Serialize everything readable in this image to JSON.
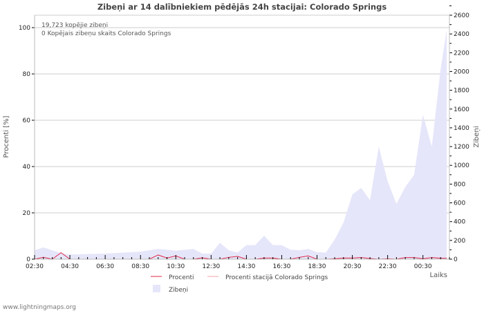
{
  "chart_data": {
    "type": "area",
    "title": "Zibeņi ar 14 dalībniekiem pēdējās 24h stacijai: Colorado Springs",
    "info_lines": [
      "19,723 kopējie zibeņi",
      "0 Kopējais zibeņu skaits Colorado Springs"
    ],
    "xlabel": "Laiks",
    "ylabel_left": "Procenti   [%]",
    "ylabel_right": "Zibeņi",
    "x_unit": "hours since 02:30",
    "xlim": [
      0,
      23.5
    ],
    "x_ticks": [
      "02:30",
      "04:30",
      "06:30",
      "08:30",
      "10:30",
      "12:30",
      "14:30",
      "16:30",
      "18:30",
      "20:30",
      "22:30",
      "00:30"
    ],
    "ylim_left": [
      0,
      100
    ],
    "y_ticks_left": [
      0,
      20,
      40,
      60,
      80,
      100
    ],
    "ylim_right": [
      0,
      2600
    ],
    "y_ticks_right": [
      0,
      200,
      400,
      600,
      800,
      1000,
      1200,
      1400,
      1600,
      1800,
      2000,
      2200,
      2400,
      2600
    ],
    "series": [
      {
        "name": "Zibeņi",
        "axis": "right",
        "color": "#e6e6fa",
        "x": [
          0,
          0.5,
          1,
          1.6,
          2,
          4,
          6,
          7,
          8,
          9,
          9.5,
          10,
          10.5,
          11,
          11.5,
          12,
          12.5,
          13,
          13.5,
          14,
          14.5,
          15,
          15.5,
          16,
          16.5,
          17,
          17.5,
          18,
          18.5,
          19,
          19.5,
          20,
          20.5,
          21,
          21.5,
          22,
          22.5,
          23,
          23.35
        ],
        "values": [
          95,
          125,
          95,
          60,
          50,
          60,
          80,
          110,
          90,
          110,
          60,
          60,
          175,
          95,
          70,
          150,
          150,
          250,
          150,
          150,
          100,
          95,
          110,
          75,
          70,
          210,
          390,
          690,
          760,
          630,
          1200,
          830,
          590,
          770,
          900,
          1540,
          1200,
          2025,
          2450
        ]
      },
      {
        "name": "Procenti",
        "axis": "left",
        "color": "#e0294a",
        "x": [
          0,
          0.5,
          1,
          1.5,
          2,
          6.5,
          7,
          7.5,
          8,
          8.5,
          9,
          9.5,
          10,
          10.5,
          11,
          11.5,
          12,
          12.5,
          13,
          13.5,
          14,
          14.5,
          15,
          15.5,
          16,
          16.5,
          17,
          17.5,
          18,
          18.5,
          19,
          19.5,
          20,
          20.5,
          21,
          21.5,
          22,
          22.5,
          23,
          23.35
        ],
        "values": [
          0,
          0.8,
          0,
          2.8,
          0,
          0,
          1.8,
          0.5,
          1.4,
          0,
          0,
          0.6,
          0,
          0,
          0.8,
          1.2,
          0,
          0,
          0.5,
          0.5,
          0,
          0,
          0.8,
          1.4,
          0,
          0,
          0.2,
          0.5,
          0.5,
          0.7,
          0.3,
          0,
          0.2,
          0,
          0.7,
          0.7,
          0.2,
          0.7,
          0.4,
          0.4
        ]
      },
      {
        "name": "Procenti stacijā Colorado Springs",
        "axis": "left",
        "color": "#f4a0a8",
        "x": [],
        "values": []
      }
    ],
    "legend": "bottom",
    "grid": true
  },
  "footer": "www.lightningmaps.org"
}
